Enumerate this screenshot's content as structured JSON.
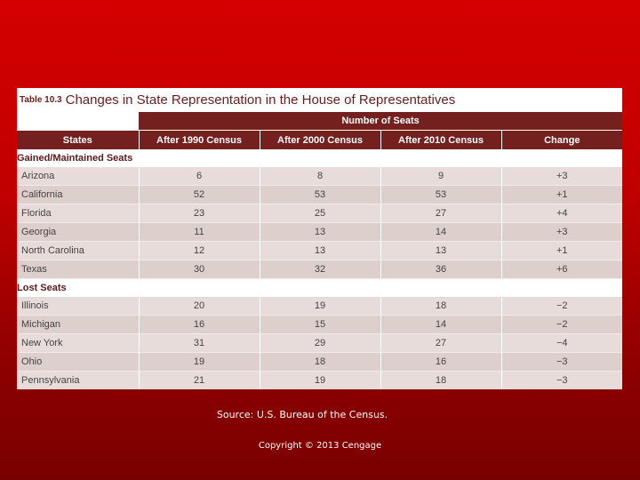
{
  "table": {
    "number": "Table 10.3",
    "title": "Changes in State Representation in the House of Representatives",
    "group_header": "Number of Seats",
    "columns": [
      "States",
      "After 1990 Census",
      "After 2000 Census",
      "After 2010 Census",
      "Change"
    ],
    "sections": [
      {
        "label": "Gained/Maintained Seats",
        "rows": [
          {
            "state": "Arizona",
            "c1990": "6",
            "c2000": "8",
            "c2010": "9",
            "change": "+3"
          },
          {
            "state": "California",
            "c1990": "52",
            "c2000": "53",
            "c2010": "53",
            "change": "+1"
          },
          {
            "state": "Florida",
            "c1990": "23",
            "c2000": "25",
            "c2010": "27",
            "change": "+4"
          },
          {
            "state": "Georgia",
            "c1990": "11",
            "c2000": "13",
            "c2010": "14",
            "change": "+3"
          },
          {
            "state": "North Carolina",
            "c1990": "12",
            "c2000": "13",
            "c2010": "13",
            "change": "+1"
          },
          {
            "state": "Texas",
            "c1990": "30",
            "c2000": "32",
            "c2010": "36",
            "change": "+6"
          }
        ]
      },
      {
        "label": "Lost Seats",
        "rows": [
          {
            "state": "Illinois",
            "c1990": "20",
            "c2000": "19",
            "c2010": "18",
            "change": "−2"
          },
          {
            "state": "Michigan",
            "c1990": "16",
            "c2000": "15",
            "c2010": "14",
            "change": "−2"
          },
          {
            "state": "New York",
            "c1990": "31",
            "c2000": "29",
            "c2010": "27",
            "change": "−4"
          },
          {
            "state": "Ohio",
            "c1990": "19",
            "c2000": "18",
            "c2010": "16",
            "change": "−3"
          },
          {
            "state": "Pennsylvania",
            "c1990": "21",
            "c2000": "19",
            "c2010": "18",
            "change": "−3"
          }
        ]
      }
    ]
  },
  "footer": {
    "source": "Source: U.S. Bureau of the Census.",
    "copyright": "Copyright © 2013 Cengage"
  },
  "colors": {
    "header_bg": "#74201f",
    "row_light": "#e7dcd9",
    "row_dark": "#dccfcc",
    "slide_bg_top": "#d40000",
    "slide_bg_bottom": "#7a0000"
  }
}
